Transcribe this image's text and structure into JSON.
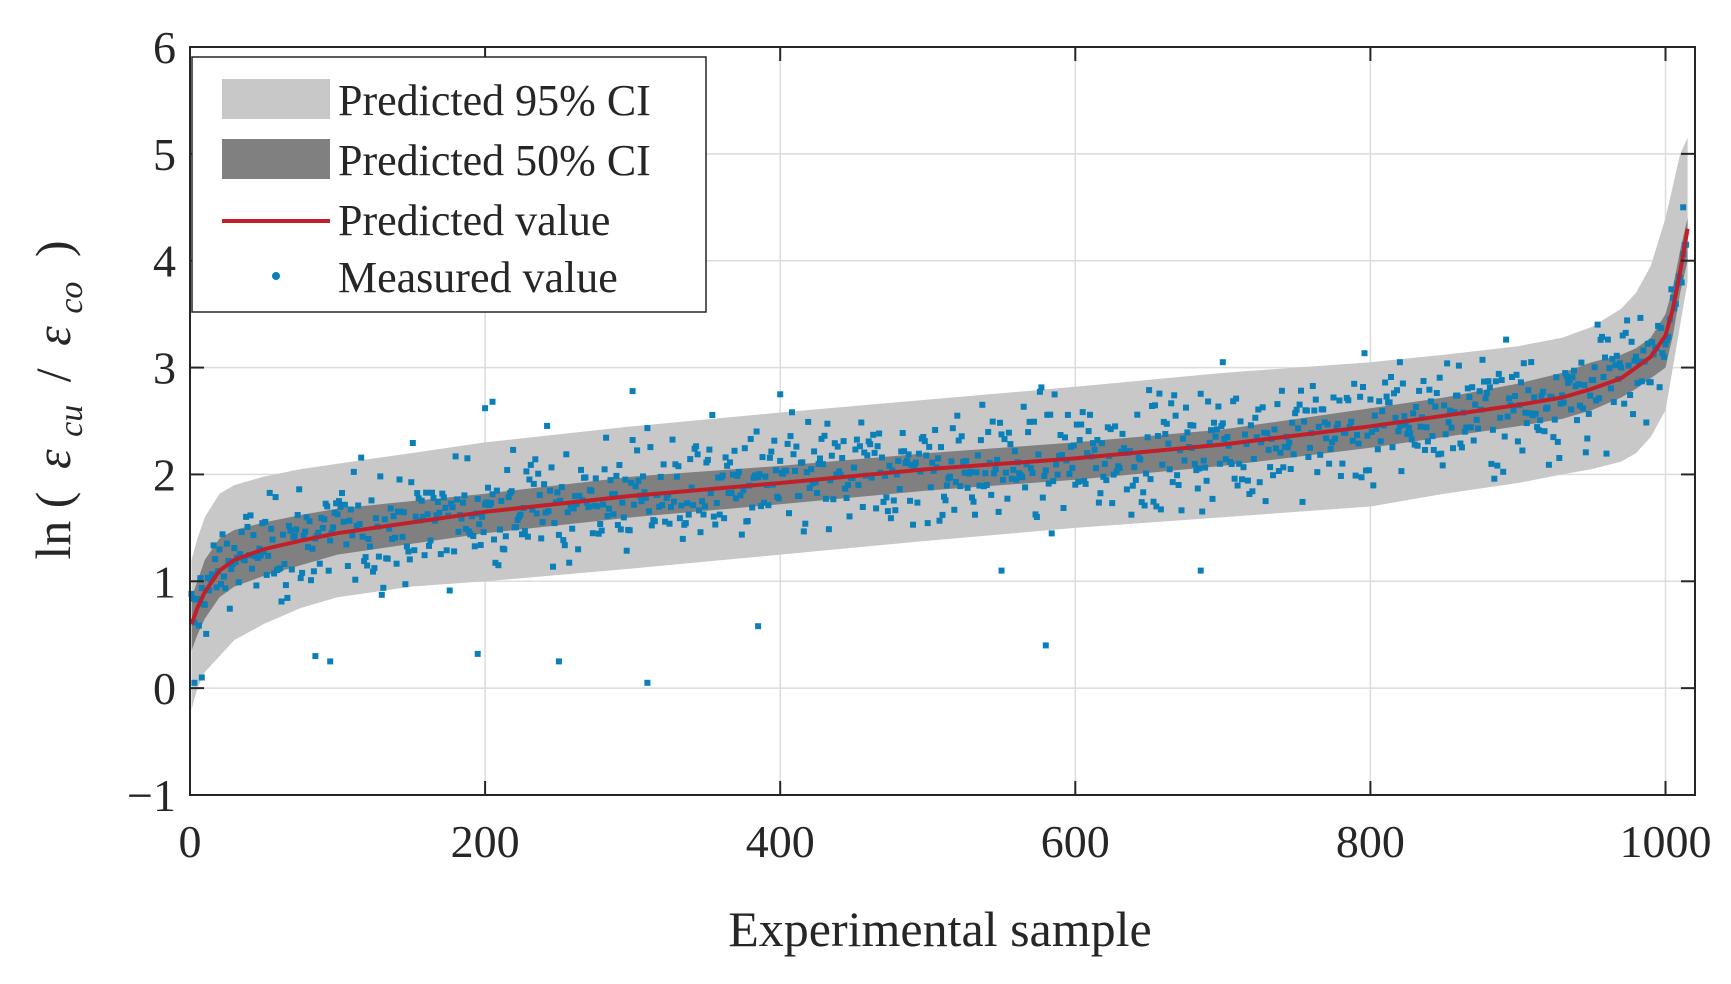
{
  "chart_data": {
    "type": "scatter",
    "title": "",
    "xlabel": "Experimental sample",
    "ylabel": {
      "prefix": "ln (",
      "numerator_symbol": "ε",
      "numerator_subscript": "cu",
      "divider": "/",
      "denominator_symbol": "ε",
      "denominator_subscript": "co",
      "suffix": ")"
    },
    "xlim": [
      0,
      1020
    ],
    "ylim": [
      -1,
      6
    ],
    "xticks": [
      0,
      200,
      400,
      600,
      800,
      1000
    ],
    "yticks": [
      -1,
      0,
      1,
      2,
      3,
      4,
      5,
      6
    ],
    "xtick_labels": [
      "0",
      "200",
      "400",
      "600",
      "800",
      "1000"
    ],
    "ytick_labels": [
      "−1",
      "0",
      "1",
      "2",
      "3",
      "4",
      "5",
      "6"
    ],
    "grid": true,
    "legend_position": "top-left",
    "n_measured_points": 1014,
    "colors": {
      "ci95": "#c8c8c8",
      "ci50": "#808080",
      "predicted": "#c0202a",
      "measured": "#0a7fb8",
      "grid": "#dcdcdc",
      "axis": "#262626"
    },
    "series": [
      {
        "name": "Predicted 95% CI",
        "kind": "band",
        "x": [
          1,
          5,
          10,
          20,
          30,
          50,
          75,
          100,
          150,
          200,
          300,
          400,
          500,
          600,
          700,
          800,
          850,
          900,
          930,
          950,
          970,
          980,
          990,
          1000,
          1005,
          1010,
          1015
        ],
        "lower": [
          -0.2,
          0.0,
          0.15,
          0.3,
          0.45,
          0.6,
          0.75,
          0.85,
          0.95,
          1.0,
          1.12,
          1.25,
          1.38,
          1.5,
          1.6,
          1.7,
          1.82,
          1.92,
          2.0,
          2.05,
          2.12,
          2.2,
          2.35,
          2.6,
          3.0,
          3.4,
          3.8
        ],
        "upper": [
          1.2,
          1.4,
          1.6,
          1.82,
          1.9,
          1.98,
          2.05,
          2.1,
          2.2,
          2.3,
          2.45,
          2.58,
          2.7,
          2.82,
          2.95,
          3.05,
          3.12,
          3.2,
          3.28,
          3.38,
          3.55,
          3.7,
          3.95,
          4.4,
          4.7,
          5.0,
          5.15
        ]
      },
      {
        "name": "Predicted 50% CI",
        "kind": "band",
        "x": [
          1,
          5,
          10,
          20,
          30,
          50,
          75,
          100,
          150,
          200,
          300,
          400,
          500,
          600,
          700,
          800,
          850,
          900,
          930,
          950,
          970,
          980,
          990,
          1000,
          1005,
          1010,
          1015
        ],
        "lower": [
          0.35,
          0.5,
          0.65,
          0.85,
          0.95,
          1.05,
          1.15,
          1.25,
          1.35,
          1.45,
          1.6,
          1.72,
          1.85,
          1.95,
          2.08,
          2.25,
          2.35,
          2.45,
          2.52,
          2.6,
          2.72,
          2.8,
          2.9,
          3.0,
          3.3,
          3.7,
          4.0
        ],
        "upper": [
          0.85,
          1.0,
          1.2,
          1.4,
          1.48,
          1.55,
          1.62,
          1.68,
          1.75,
          1.82,
          1.98,
          2.08,
          2.2,
          2.3,
          2.42,
          2.62,
          2.72,
          2.85,
          2.95,
          3.05,
          3.12,
          3.18,
          3.28,
          3.5,
          3.75,
          4.1,
          4.4
        ]
      },
      {
        "name": "Predicted value",
        "kind": "line",
        "x": [
          1,
          5,
          10,
          20,
          30,
          50,
          75,
          100,
          150,
          200,
          300,
          400,
          500,
          600,
          700,
          800,
          850,
          900,
          930,
          950,
          970,
          980,
          990,
          1000,
          1005,
          1010,
          1015
        ],
        "y": [
          0.6,
          0.75,
          0.9,
          1.1,
          1.2,
          1.3,
          1.38,
          1.45,
          1.55,
          1.65,
          1.8,
          1.92,
          2.05,
          2.15,
          2.28,
          2.45,
          2.55,
          2.65,
          2.72,
          2.8,
          2.9,
          3.0,
          3.1,
          3.3,
          3.55,
          3.9,
          4.3
        ]
      },
      {
        "name": "Measured value",
        "kind": "scatter",
        "note": "1014 measured points; trend follows predicted value with scatter of roughly ±0.45",
        "outliers": [
          {
            "x": 3,
            "y": 0.05
          },
          {
            "x": 8,
            "y": 0.1
          },
          {
            "x": 85,
            "y": 0.3
          },
          {
            "x": 95,
            "y": 0.25
          },
          {
            "x": 195,
            "y": 0.32
          },
          {
            "x": 200,
            "y": 2.62
          },
          {
            "x": 205,
            "y": 2.68
          },
          {
            "x": 250,
            "y": 0.25
          },
          {
            "x": 300,
            "y": 2.78
          },
          {
            "x": 310,
            "y": 0.05
          },
          {
            "x": 385,
            "y": 0.58
          },
          {
            "x": 400,
            "y": 2.75
          },
          {
            "x": 550,
            "y": 1.1
          },
          {
            "x": 580,
            "y": 0.4
          },
          {
            "x": 685,
            "y": 1.1
          },
          {
            "x": 700,
            "y": 3.05
          },
          {
            "x": 820,
            "y": 3.05
          },
          {
            "x": 1012,
            "y": 4.5
          }
        ]
      }
    ],
    "legend": [
      {
        "label": "Predicted 95% CI",
        "symbol": "band-light"
      },
      {
        "label": "Predicted 50% CI",
        "symbol": "band-dark"
      },
      {
        "label": "Predicted value",
        "symbol": "line"
      },
      {
        "label": "Measured value",
        "symbol": "marker"
      }
    ]
  }
}
